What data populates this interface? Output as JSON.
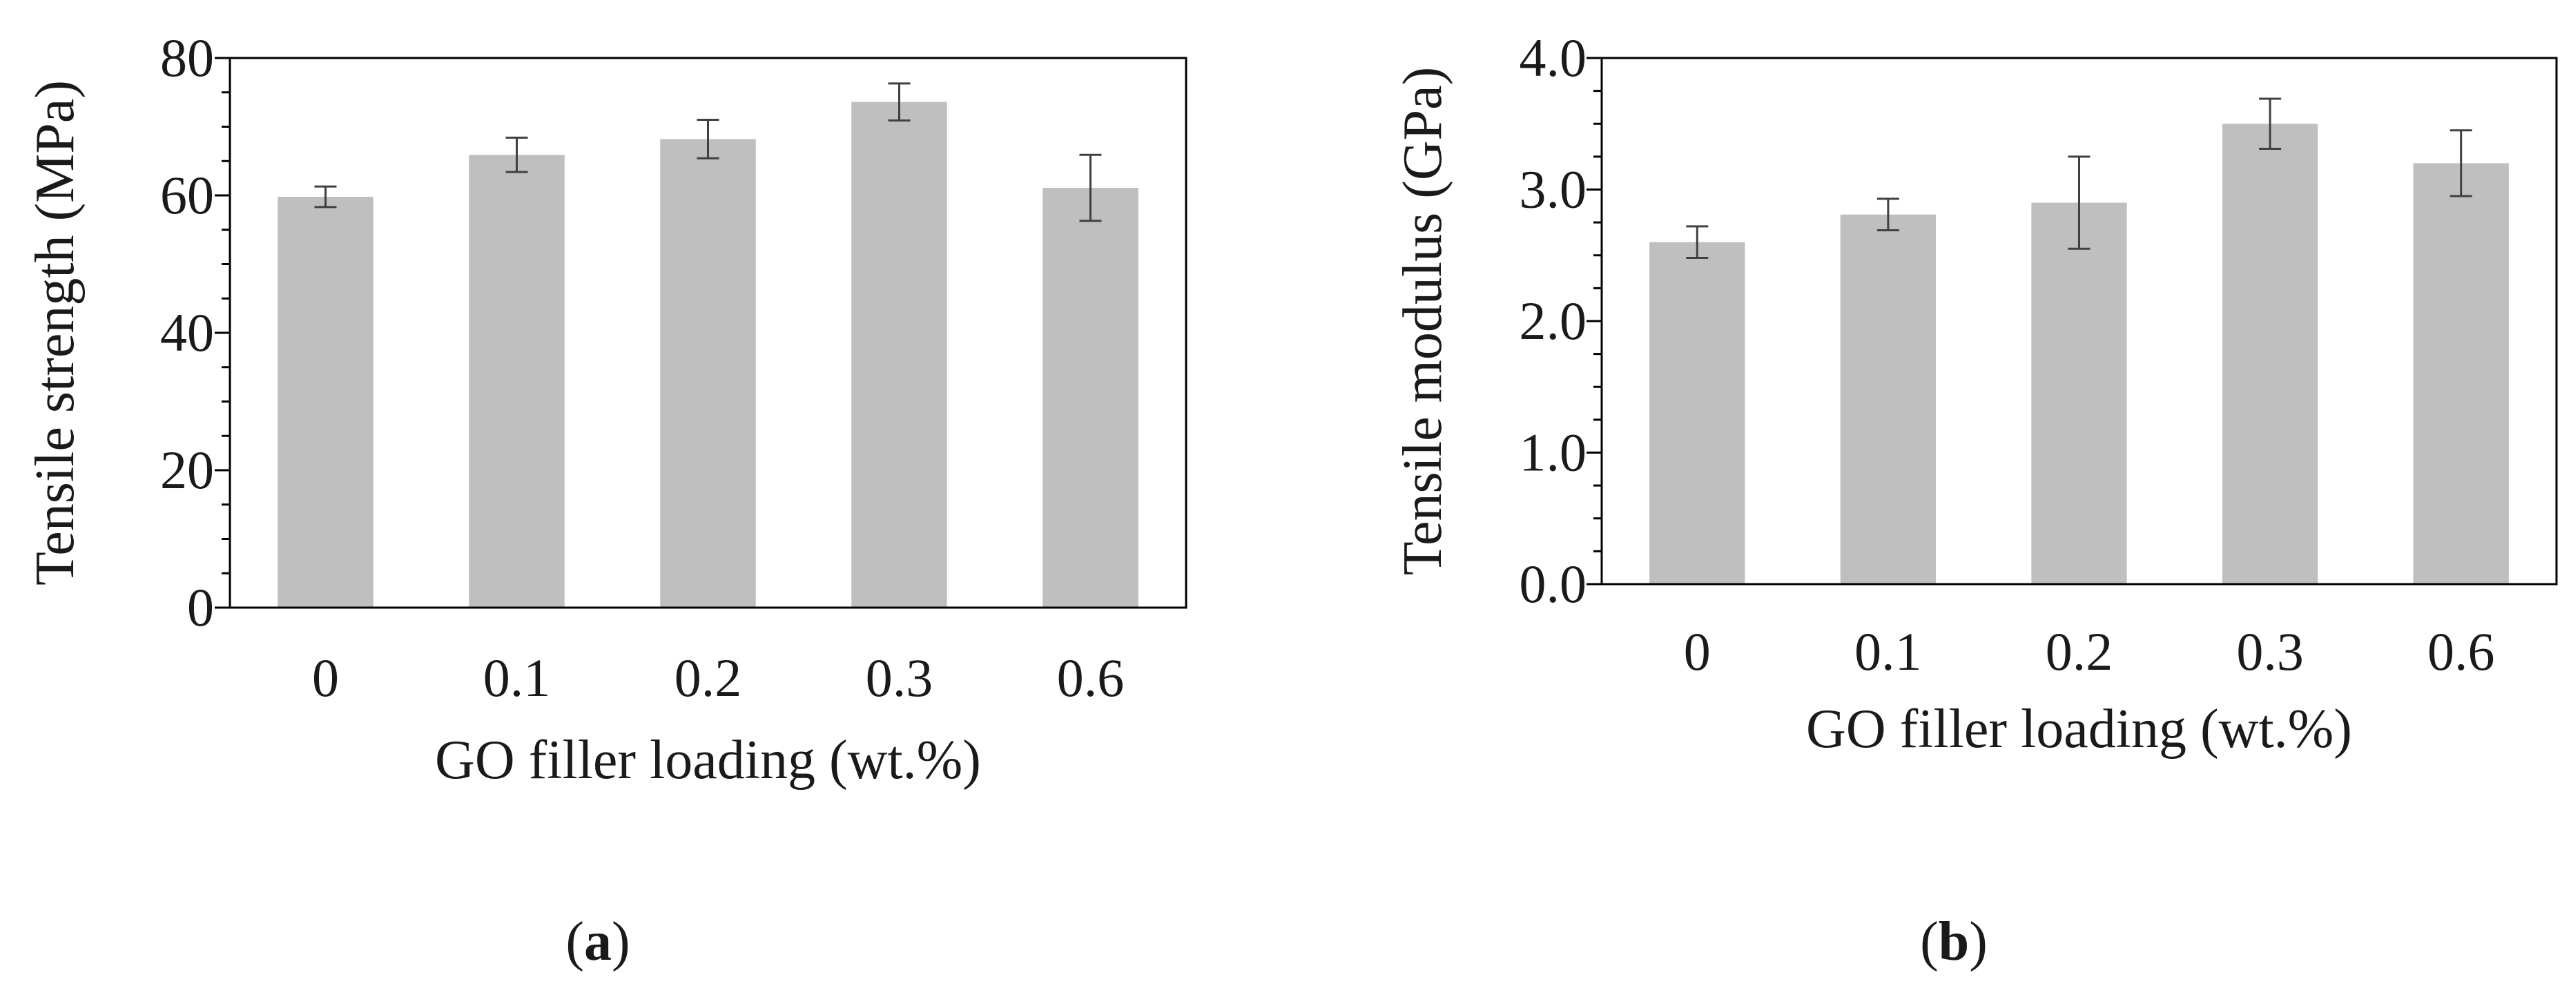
{
  "chart_data": [
    {
      "type": "bar",
      "panel_label": "a",
      "categories": [
        "0",
        "0.1",
        "0.2",
        "0.3",
        "0.6"
      ],
      "values": [
        59.8,
        65.9,
        68.2,
        73.6,
        61.1
      ],
      "errors": [
        1.5,
        2.5,
        2.8,
        2.7,
        4.8
      ],
      "title": "",
      "xlabel": "GO filler loading (wt.%)",
      "ylabel": "Tensile strength (MPa)",
      "ylim": [
        0,
        80
      ],
      "yticks": [
        "0",
        "20",
        "40",
        "60",
        "80"
      ],
      "grid": false
    },
    {
      "type": "bar",
      "panel_label": "b",
      "categories": [
        "0",
        "0.1",
        "0.2",
        "0.3",
        "0.6"
      ],
      "values": [
        2.6,
        2.81,
        2.9,
        3.5,
        3.2
      ],
      "errors": [
        0.12,
        0.12,
        0.35,
        0.19,
        0.25
      ],
      "title": "",
      "xlabel": "GO filler loading (wt.%)",
      "ylabel": "Tensile modulus (GPa)",
      "ylim": [
        0,
        4.0
      ],
      "yticks": [
        "0.0",
        "1.0",
        "2.0",
        "3.0",
        "4.0"
      ],
      "grid": false
    }
  ],
  "colors": {
    "bar": "#bfbfbf",
    "error_bar": "#404040",
    "axis": "#000000"
  }
}
